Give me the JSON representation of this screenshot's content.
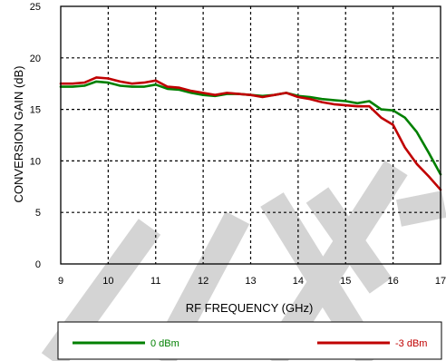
{
  "chart_data": {
    "type": "line",
    "title": "",
    "xlabel": "RF FREQUENCY (GHz)",
    "ylabel": "CONVERSION GAIN (dB)",
    "xlim": [
      9,
      17
    ],
    "ylim": [
      0,
      25
    ],
    "x_ticks": [
      "9",
      "10",
      "11",
      "12",
      "13",
      "14",
      "15",
      "16",
      "17"
    ],
    "y_ticks": [
      "0",
      "5",
      "10",
      "15",
      "20",
      "25"
    ],
    "grid": true,
    "legend_position": "bottom",
    "watermark_text": "LITE",
    "series": [
      {
        "name": "0 dBm",
        "color": "#008000",
        "x": [
          9,
          9.25,
          9.5,
          9.75,
          10,
          10.25,
          10.5,
          10.75,
          11,
          11.25,
          11.5,
          11.75,
          12,
          12.25,
          12.5,
          12.75,
          13,
          13.25,
          13.5,
          13.75,
          14,
          14.25,
          14.5,
          14.75,
          15,
          15.25,
          15.5,
          15.75,
          16,
          16.25,
          16.5,
          16.75,
          17
        ],
        "y": [
          17.2,
          17.2,
          17.3,
          17.7,
          17.6,
          17.3,
          17.2,
          17.2,
          17.4,
          17.0,
          16.9,
          16.6,
          16.4,
          16.3,
          16.5,
          16.5,
          16.4,
          16.3,
          16.4,
          16.6,
          16.3,
          16.2,
          16.0,
          15.9,
          15.8,
          15.6,
          15.8,
          15.0,
          14.9,
          14.2,
          12.8,
          10.8,
          8.7
        ]
      },
      {
        "name": "-3 dBm",
        "color": "#c00000",
        "x": [
          9,
          9.25,
          9.5,
          9.75,
          10,
          10.25,
          10.5,
          10.75,
          11,
          11.25,
          11.5,
          11.75,
          12,
          12.25,
          12.5,
          12.75,
          13,
          13.25,
          13.5,
          13.75,
          14,
          14.25,
          14.5,
          14.75,
          15,
          15.25,
          15.5,
          15.75,
          16,
          16.25,
          16.5,
          16.75,
          17
        ],
        "y": [
          17.5,
          17.5,
          17.6,
          18.1,
          18.0,
          17.7,
          17.5,
          17.6,
          17.8,
          17.2,
          17.1,
          16.8,
          16.6,
          16.4,
          16.6,
          16.5,
          16.4,
          16.2,
          16.4,
          16.6,
          16.2,
          16.0,
          15.7,
          15.5,
          15.4,
          15.3,
          15.3,
          14.2,
          13.5,
          11.3,
          9.7,
          8.5,
          7.2
        ]
      }
    ]
  }
}
